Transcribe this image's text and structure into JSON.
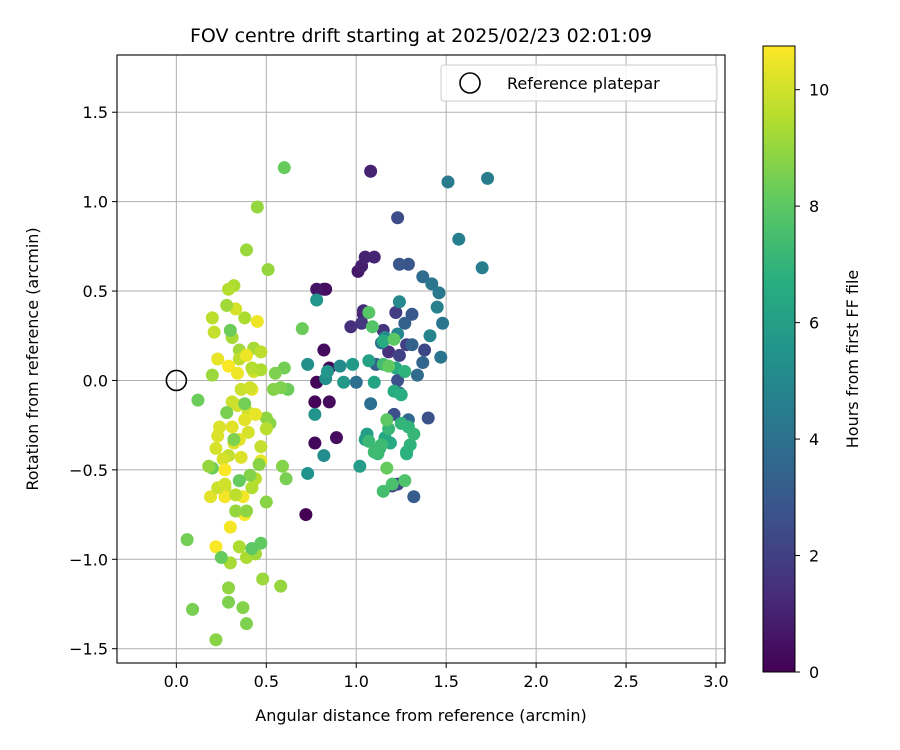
{
  "chart_data": {
    "type": "scatter",
    "title": "FOV centre drift starting at 2025/02/23 02:01:09",
    "xlabel": "Angular distance from reference (arcmin)",
    "ylabel": "Rotation from reference (arcmin)",
    "xlim": [
      -0.33,
      3.05
    ],
    "ylim": [
      -1.58,
      1.82
    ],
    "xticks": [
      0.0,
      0.5,
      1.0,
      1.5,
      2.0,
      2.5,
      3.0
    ],
    "xtick_labels": [
      "0.0",
      "0.5",
      "1.0",
      "1.5",
      "2.0",
      "2.5",
      "3.0"
    ],
    "yticks": [
      -1.5,
      -1.0,
      -0.5,
      0.0,
      0.5,
      1.0,
      1.5
    ],
    "ytick_labels": [
      "−1.5",
      "−1.0",
      "−0.5",
      "0.0",
      "0.5",
      "1.0",
      "1.5"
    ],
    "grid": true,
    "legend": {
      "placement": "top-right",
      "entries": [
        {
          "label": "Reference platepar",
          "marker": "open-circle"
        }
      ]
    },
    "reference_point": {
      "x": 0.0,
      "y": 0.0
    },
    "colorbar": {
      "label": "Hours from first FF file",
      "colormap": "viridis",
      "range": [
        0,
        10.75
      ],
      "ticks": [
        0,
        2,
        4,
        6,
        8,
        10
      ],
      "tick_labels": [
        "0",
        "2",
        "4",
        "6",
        "8",
        "10"
      ]
    },
    "points": [
      [
        0.72,
        -0.75,
        0.0
      ],
      [
        0.77,
        -0.12,
        0.1
      ],
      [
        0.78,
        -0.01,
        0.1
      ],
      [
        0.77,
        -0.35,
        0.2
      ],
      [
        0.82,
        0.51,
        0.2
      ],
      [
        0.85,
        0.07,
        0.2
      ],
      [
        0.85,
        -0.12,
        0.3
      ],
      [
        0.82,
        0.17,
        0.3
      ],
      [
        0.89,
        -0.32,
        0.3
      ],
      [
        0.83,
        0.51,
        0.4
      ],
      [
        0.78,
        0.51,
        0.6
      ],
      [
        1.01,
        0.61,
        0.7
      ],
      [
        1.04,
        0.37,
        0.8
      ],
      [
        1.03,
        0.64,
        0.9
      ],
      [
        1.08,
        1.17,
        1.0
      ],
      [
        1.05,
        0.69,
        1.0
      ],
      [
        1.1,
        0.69,
        1.1
      ],
      [
        1.04,
        0.39,
        1.2
      ],
      [
        0.97,
        0.3,
        1.4
      ],
      [
        1.18,
        0.16,
        1.5
      ],
      [
        1.15,
        0.28,
        1.6
      ],
      [
        1.03,
        0.32,
        1.7
      ],
      [
        1.2,
        -0.59,
        1.8
      ],
      [
        1.22,
        0.38,
        1.9
      ],
      [
        1.28,
        0.2,
        2.0
      ],
      [
        1.24,
        0.14,
        2.1
      ],
      [
        1.23,
        -0.58,
        2.2
      ],
      [
        1.38,
        0.17,
        2.3
      ],
      [
        1.23,
        0.91,
        2.5
      ],
      [
        1.21,
        -0.19,
        2.6
      ],
      [
        1.23,
        0.0,
        2.6
      ],
      [
        1.4,
        -0.21,
        2.7
      ],
      [
        1.29,
        0.65,
        2.8
      ],
      [
        1.24,
        0.65,
        2.9
      ],
      [
        1.31,
        0.37,
        3.0
      ],
      [
        1.32,
        -0.65,
        3.1
      ],
      [
        1.11,
        0.09,
        3.2
      ],
      [
        1.27,
        0.32,
        3.3
      ],
      [
        1.31,
        0.2,
        3.4
      ],
      [
        1.37,
        0.1,
        3.5
      ],
      [
        1.24,
        -0.07,
        3.6
      ],
      [
        1.29,
        -0.22,
        3.6
      ],
      [
        1.34,
        0.03,
        3.7
      ],
      [
        1.37,
        0.58,
        3.8
      ],
      [
        1.0,
        -0.01,
        3.9
      ],
      [
        1.08,
        -0.13,
        3.9
      ],
      [
        1.14,
        0.21,
        4.0
      ],
      [
        1.47,
        0.13,
        4.1
      ],
      [
        1.48,
        0.32,
        4.2
      ],
      [
        1.42,
        0.54,
        4.2
      ],
      [
        1.46,
        0.49,
        4.3
      ],
      [
        1.51,
        1.11,
        4.4
      ],
      [
        1.73,
        1.13,
        4.5
      ],
      [
        1.7,
        0.63,
        4.6
      ],
      [
        1.57,
        0.79,
        4.6
      ],
      [
        1.45,
        0.41,
        4.7
      ],
      [
        1.41,
        0.25,
        4.8
      ],
      [
        1.23,
        0.26,
        4.9
      ],
      [
        1.24,
        0.44,
        5.0
      ],
      [
        1.16,
        0.24,
        5.1
      ],
      [
        0.91,
        0.08,
        5.1
      ],
      [
        0.82,
        -0.42,
        5.2
      ],
      [
        0.83,
        0.01,
        5.3
      ],
      [
        0.73,
        0.09,
        5.3
      ],
      [
        0.73,
        -0.52,
        5.4
      ],
      [
        0.77,
        -0.19,
        5.5
      ],
      [
        0.78,
        0.45,
        5.6
      ],
      [
        0.84,
        0.05,
        5.6
      ],
      [
        0.93,
        -0.01,
        5.7
      ],
      [
        0.98,
        0.09,
        5.8
      ],
      [
        1.02,
        -0.48,
        5.9
      ],
      [
        1.06,
        -0.3,
        6.0
      ],
      [
        1.05,
        -0.33,
        6.0
      ],
      [
        1.07,
        0.11,
        6.1
      ],
      [
        1.1,
        -0.01,
        6.2
      ],
      [
        1.13,
        -0.38,
        6.3
      ],
      [
        1.16,
        -0.32,
        6.4
      ],
      [
        1.19,
        -0.35,
        6.5
      ],
      [
        1.22,
        0.07,
        6.5
      ],
      [
        1.15,
        0.22,
        6.6
      ],
      [
        1.21,
        -0.06,
        6.6
      ],
      [
        1.25,
        -0.08,
        6.7
      ],
      [
        1.28,
        -0.4,
        6.8
      ],
      [
        1.28,
        -0.41,
        6.8
      ],
      [
        1.3,
        -0.36,
        6.9
      ],
      [
        1.27,
        0.05,
        6.9
      ],
      [
        1.25,
        -0.24,
        7.0
      ],
      [
        1.29,
        -0.26,
        7.0
      ],
      [
        1.32,
        -0.3,
        7.1
      ],
      [
        1.18,
        -0.27,
        7.1
      ],
      [
        1.12,
        -0.41,
        7.2
      ],
      [
        1.07,
        -0.34,
        7.2
      ],
      [
        1.1,
        -0.4,
        7.3
      ],
      [
        1.14,
        -0.36,
        7.3
      ],
      [
        1.15,
        0.09,
        7.4
      ],
      [
        1.15,
        -0.62,
        7.5
      ],
      [
        1.2,
        -0.58,
        7.6
      ],
      [
        1.27,
        -0.56,
        7.7
      ],
      [
        1.09,
        0.3,
        7.8
      ],
      [
        1.07,
        0.38,
        7.9
      ],
      [
        1.17,
        -0.22,
        8.0
      ],
      [
        1.21,
        0.23,
        8.0
      ],
      [
        1.18,
        0.08,
        8.1
      ],
      [
        1.17,
        -0.49,
        8.2
      ],
      [
        0.6,
        1.19,
        8.2
      ],
      [
        0.7,
        0.29,
        8.3
      ],
      [
        0.62,
        -0.05,
        8.3
      ],
      [
        0.6,
        0.07,
        8.4
      ],
      [
        0.61,
        -0.55,
        8.5
      ],
      [
        0.58,
        -0.04,
        8.6
      ],
      [
        0.59,
        -0.48,
        8.7
      ],
      [
        0.52,
        -0.24,
        8.8
      ],
      [
        0.5,
        -0.21,
        8.9
      ],
      [
        0.51,
        0.62,
        9.0
      ],
      [
        0.45,
        0.97,
        9.0
      ],
      [
        0.39,
        0.73,
        9.1
      ],
      [
        0.35,
        0.17,
        9.2
      ],
      [
        0.43,
        0.18,
        9.3
      ],
      [
        0.38,
        0.35,
        9.4
      ],
      [
        0.32,
        0.53,
        9.4
      ],
      [
        0.29,
        0.51,
        9.5
      ],
      [
        0.2,
        0.35,
        9.6
      ],
      [
        0.35,
        0.12,
        9.7
      ],
      [
        0.47,
        0.16,
        9.7
      ],
      [
        0.29,
        -0.42,
        9.8
      ],
      [
        0.27,
        -0.6,
        9.8
      ],
      [
        0.36,
        -0.05,
        9.9
      ],
      [
        0.34,
        -0.14,
        10.0
      ],
      [
        0.4,
        -0.18,
        10.0
      ],
      [
        0.43,
        0.05,
        10.0
      ],
      [
        0.33,
        0.4,
        10.1
      ],
      [
        0.22,
        -0.38,
        10.1
      ],
      [
        0.26,
        -0.44,
        10.1
      ],
      [
        0.23,
        -0.31,
        10.2
      ],
      [
        0.24,
        -0.26,
        10.2
      ],
      [
        0.32,
        -0.35,
        10.2
      ],
      [
        0.35,
        -0.33,
        10.3
      ],
      [
        0.31,
        -0.26,
        10.3
      ],
      [
        0.38,
        -0.22,
        10.3
      ],
      [
        0.44,
        -0.19,
        10.4
      ],
      [
        0.42,
        -0.05,
        10.4
      ],
      [
        0.47,
        -0.45,
        10.4
      ],
      [
        0.39,
        0.14,
        10.5
      ],
      [
        0.45,
        0.33,
        10.5
      ],
      [
        0.27,
        -0.65,
        10.6
      ],
      [
        0.37,
        -0.65,
        10.6
      ],
      [
        0.3,
        -0.82,
        10.6
      ],
      [
        0.29,
        0.08,
        10.7
      ],
      [
        0.38,
        -0.75,
        10.7
      ],
      [
        0.22,
        -0.93,
        10.7
      ],
      [
        0.34,
        0.04,
        10.5
      ],
      [
        0.23,
        0.12,
        10.4
      ],
      [
        0.19,
        -0.65,
        10.3
      ],
      [
        0.27,
        -0.5,
        10.7
      ],
      [
        0.4,
        -0.29,
        10.1
      ],
      [
        0.36,
        -0.43,
        10.2
      ],
      [
        0.41,
        -0.04,
        10.0
      ],
      [
        0.31,
        -0.12,
        9.9
      ],
      [
        0.47,
        -0.37,
        9.8
      ],
      [
        0.33,
        -0.64,
        9.7
      ],
      [
        0.44,
        -0.55,
        9.6
      ],
      [
        0.42,
        -0.6,
        9.5
      ],
      [
        0.39,
        -0.99,
        9.4
      ],
      [
        0.35,
        -0.93,
        9.4
      ],
      [
        0.3,
        -1.02,
        9.3
      ],
      [
        0.44,
        -0.97,
        9.2
      ],
      [
        0.48,
        -1.11,
        9.1
      ],
      [
        0.58,
        -1.15,
        9.0
      ],
      [
        0.29,
        -1.16,
        8.9
      ],
      [
        0.22,
        -1.45,
        8.8
      ],
      [
        0.37,
        -1.27,
        8.7
      ],
      [
        0.39,
        -1.36,
        8.6
      ],
      [
        0.29,
        -1.24,
        8.6
      ],
      [
        0.09,
        -1.28,
        8.5
      ],
      [
        0.06,
        -0.89,
        8.4
      ],
      [
        0.12,
        -0.11,
        8.3
      ],
      [
        0.2,
        -0.49,
        8.3
      ],
      [
        0.25,
        -0.99,
        8.2
      ],
      [
        0.47,
        -0.91,
        8.1
      ],
      [
        0.42,
        -0.94,
        8.0
      ],
      [
        0.32,
        -0.33,
        8.6
      ],
      [
        0.41,
        -0.53,
        8.7
      ],
      [
        0.5,
        -0.68,
        8.8
      ],
      [
        0.18,
        -0.48,
        9.0
      ],
      [
        0.2,
        0.03,
        9.1
      ],
      [
        0.28,
        0.42,
        9.2
      ],
      [
        0.31,
        0.24,
        9.3
      ],
      [
        0.47,
        0.06,
        9.4
      ],
      [
        0.42,
        0.07,
        9.5
      ],
      [
        0.5,
        -0.27,
        9.6
      ],
      [
        0.21,
        0.27,
        9.8
      ],
      [
        0.23,
        -0.6,
        9.9
      ],
      [
        0.27,
        -0.58,
        10.0
      ],
      [
        0.33,
        -0.73,
        9.0
      ],
      [
        0.39,
        -0.73,
        8.9
      ],
      [
        0.46,
        -0.47,
        8.8
      ],
      [
        0.54,
        -0.05,
        8.7
      ],
      [
        0.55,
        0.04,
        8.6
      ],
      [
        0.28,
        -0.18,
        8.5
      ],
      [
        0.38,
        -0.13,
        8.4
      ],
      [
        0.3,
        0.28,
        8.3
      ],
      [
        0.35,
        -0.56,
        8.2
      ]
    ]
  }
}
